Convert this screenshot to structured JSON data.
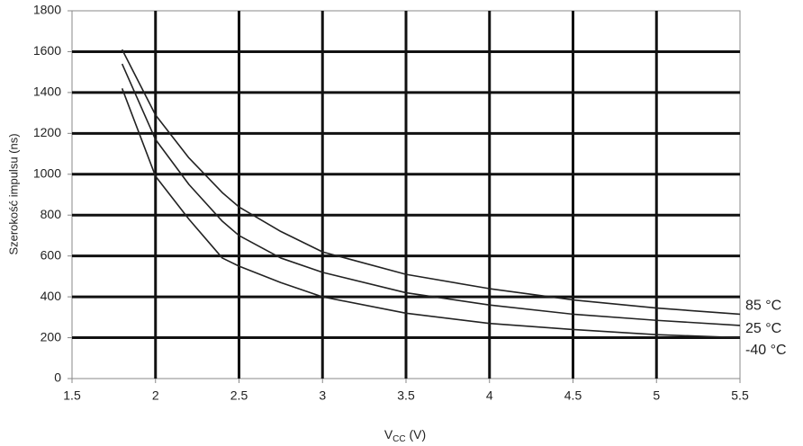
{
  "chart_data": {
    "type": "line",
    "y_label": "Szerokość impulsu (ns)",
    "x_label": [
      "V",
      "CC",
      " (V)"
    ],
    "x": [
      1.8,
      2.0,
      2.2,
      2.4,
      2.5,
      2.75,
      3.0,
      3.5,
      4.0,
      4.5,
      5.0,
      5.5
    ],
    "series": [
      {
        "name": "85 °C",
        "color": "#222222",
        "values": [
          1610,
          1290,
          1080,
          910,
          840,
          720,
          620,
          510,
          440,
          385,
          345,
          315
        ]
      },
      {
        "name": "25 °C",
        "color": "#222222",
        "values": [
          1540,
          1170,
          950,
          770,
          700,
          590,
          520,
          420,
          360,
          315,
          285,
          260
        ]
      },
      {
        "name": "-40 °C",
        "color": "#222222",
        "values": [
          1420,
          990,
          780,
          590,
          550,
          470,
          400,
          320,
          270,
          240,
          215,
          200
        ]
      }
    ],
    "xlim": [
      1.5,
      5.5
    ],
    "xticks": [
      1.5,
      2,
      2.5,
      3,
      3.5,
      4,
      4.5,
      5,
      5.5
    ],
    "ylim": [
      0,
      1800
    ],
    "yticks": [
      0,
      200,
      400,
      600,
      800,
      1000,
      1200,
      1400,
      1600,
      1800
    ],
    "grid": true
  }
}
